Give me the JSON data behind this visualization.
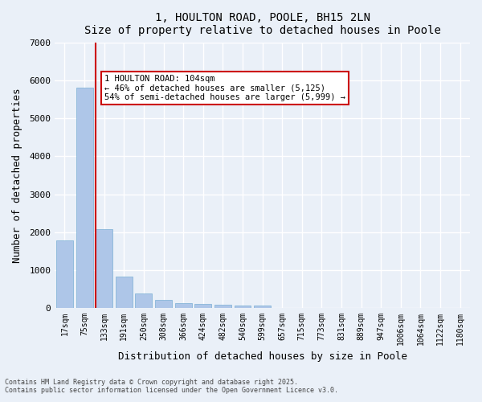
{
  "title": "1, HOULTON ROAD, POOLE, BH15 2LN",
  "subtitle": "Size of property relative to detached houses in Poole",
  "xlabel": "Distribution of detached houses by size in Poole",
  "ylabel": "Number of detached properties",
  "categories": [
    "17sqm",
    "75sqm",
    "133sqm",
    "191sqm",
    "250sqm",
    "308sqm",
    "366sqm",
    "424sqm",
    "482sqm",
    "540sqm",
    "599sqm",
    "657sqm",
    "715sqm",
    "773sqm",
    "831sqm",
    "889sqm",
    "947sqm",
    "1006sqm",
    "1064sqm",
    "1122sqm",
    "1180sqm"
  ],
  "values": [
    1780,
    5820,
    2080,
    820,
    370,
    200,
    130,
    95,
    85,
    60,
    55,
    0,
    0,
    0,
    0,
    0,
    0,
    0,
    0,
    0,
    0
  ],
  "bar_color": "#aec6e8",
  "bar_edge_color": "#7bafd4",
  "red_line_index": 1.55,
  "annotation_text": "1 HOULTON ROAD: 104sqm\n← 46% of detached houses are smaller (5,125)\n54% of semi-detached houses are larger (5,999) →",
  "annotation_box_color": "#ffffff",
  "annotation_border_color": "#cc0000",
  "vline_color": "#cc0000",
  "bg_color": "#eaf0f8",
  "plot_bg_color": "#eaf0f8",
  "grid_color": "#ffffff",
  "ylim": [
    0,
    7000
  ],
  "yticks": [
    0,
    1000,
    2000,
    3000,
    4000,
    5000,
    6000,
    7000
  ],
  "footer1": "Contains HM Land Registry data © Crown copyright and database right 2025.",
  "footer2": "Contains public sector information licensed under the Open Government Licence v3.0."
}
